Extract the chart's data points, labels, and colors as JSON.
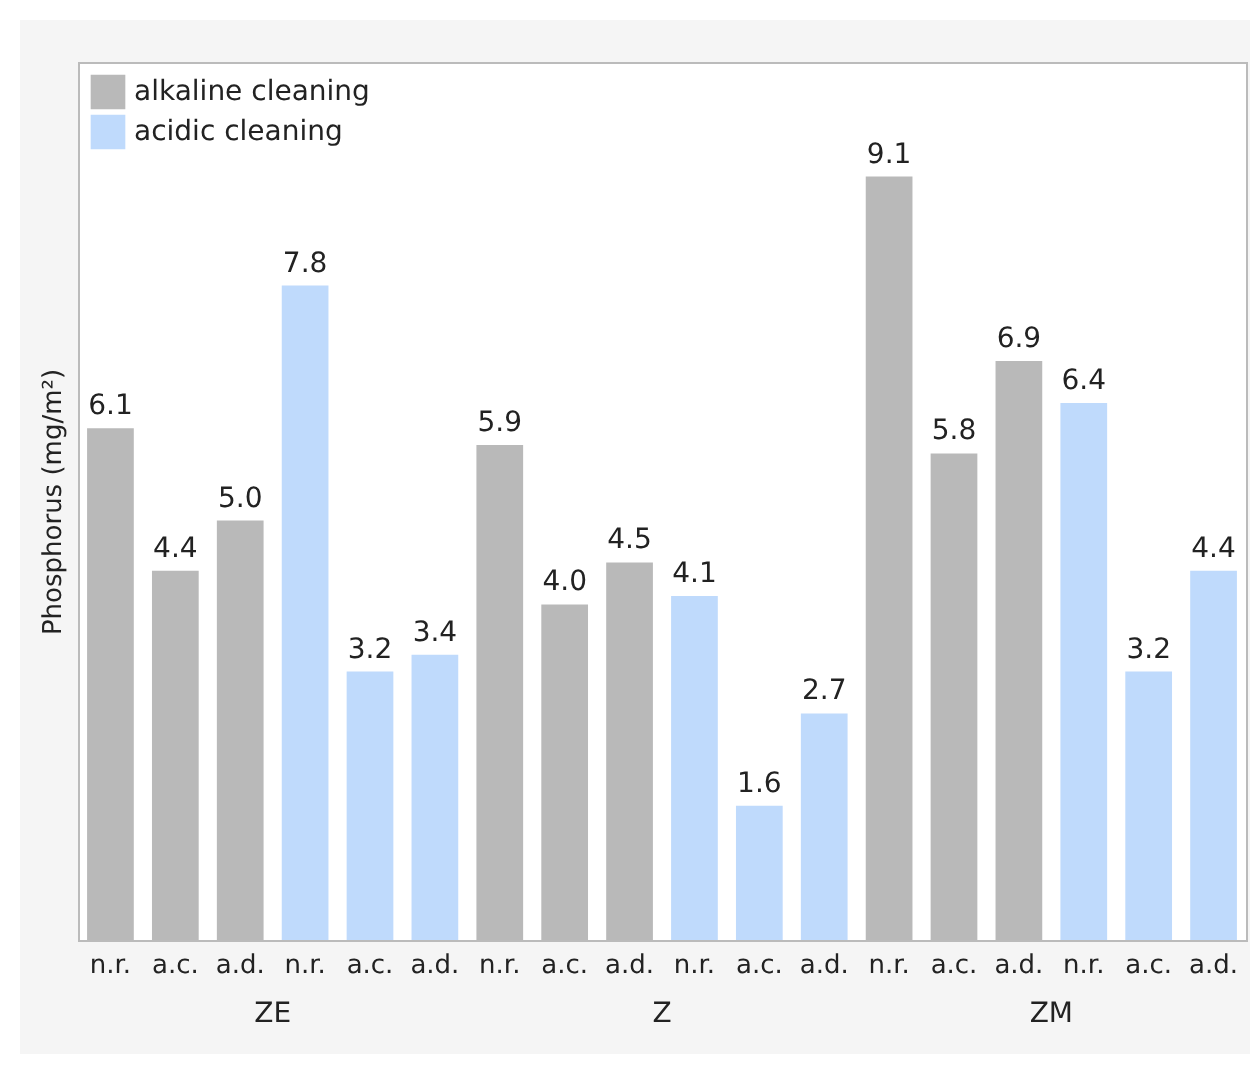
{
  "chart_data": {
    "type": "bar",
    "ylabel": "Phosphorus (mg/m²)",
    "categories": [
      "n.r.",
      "a.c.",
      "a.d.",
      "n.r.",
      "a.c.",
      "a.d.",
      "n.r.",
      "a.c.",
      "a.d.",
      "n.r.",
      "a.c.",
      "a.d.",
      "n.r.",
      "a.c.",
      "a.d.",
      "n.r.",
      "a.c.",
      "a.d."
    ],
    "series": [
      {
        "name": "alkaline cleaning",
        "color": "#b9b9b9",
        "values": [
          6.1,
          4.4,
          5.0,
          null,
          null,
          null,
          5.9,
          4.0,
          4.5,
          null,
          null,
          null,
          9.1,
          5.8,
          6.9,
          null,
          null,
          null
        ],
        "value_labels": [
          "6.1",
          "4.4",
          "5.0",
          null,
          null,
          null,
          "5.9",
          "4.0",
          "4.5",
          null,
          null,
          null,
          "9.1",
          "5.8",
          "6.9",
          null,
          null,
          null
        ]
      },
      {
        "name": "acidic cleaning",
        "color": "#bfdafc",
        "values": [
          null,
          null,
          null,
          7.8,
          3.2,
          3.4,
          null,
          null,
          null,
          4.1,
          1.6,
          2.7,
          null,
          null,
          null,
          6.4,
          3.2,
          4.4
        ],
        "value_labels": [
          null,
          null,
          null,
          "7.8",
          "3.2",
          "3.4",
          null,
          null,
          null,
          "4.1",
          "1.6",
          "2.7",
          null,
          null,
          null,
          "6.4",
          "3.2",
          "4.4"
        ]
      }
    ],
    "annotations": [
      "ZE",
      "Z",
      "ZM"
    ],
    "legend": "top left",
    "grid": false
  }
}
